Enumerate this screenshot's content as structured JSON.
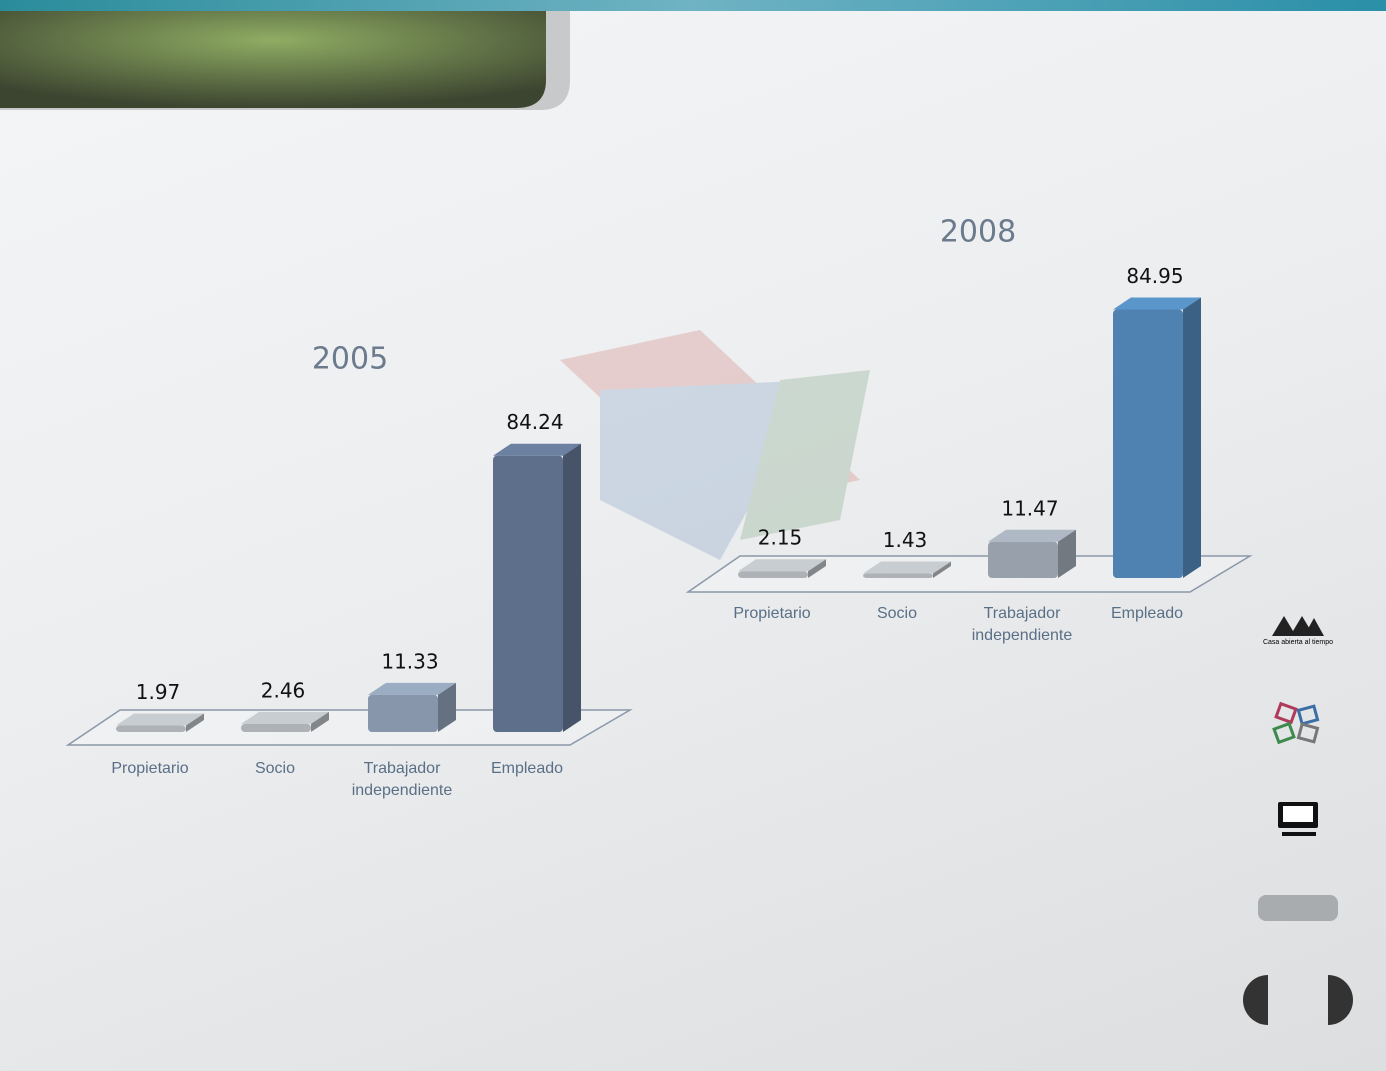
{
  "chart_data": [
    {
      "type": "bar3d",
      "title": "2005",
      "categories": [
        "Propietario",
        "Socio",
        "Trabajador independiente",
        "Empleado"
      ],
      "values": [
        1.97,
        2.46,
        11.33,
        84.24
      ],
      "colors": [
        "#aeb2b6",
        "#aeb2b6",
        "#8796aa",
        "#5e6f8c"
      ]
    },
    {
      "type": "bar3d",
      "title": "2008",
      "categories": [
        "Propietario",
        "Socio",
        "Trabajador independiente",
        "Empleado"
      ],
      "values": [
        2.15,
        1.43,
        11.47,
        84.95
      ],
      "colors": [
        "#aeb2b6",
        "#aeb2b6",
        "#98a1ab",
        "#4f82b0"
      ]
    }
  ],
  "logo_text": "Casa abierta al tiempo"
}
